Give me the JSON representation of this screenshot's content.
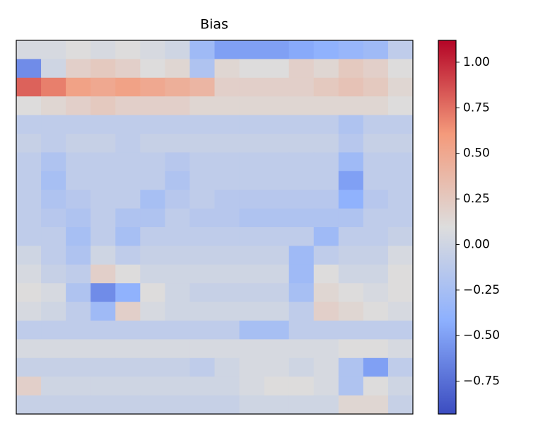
{
  "chart_data": {
    "type": "heatmap",
    "title": "Bias",
    "colormap": "coolwarm",
    "vlim": [
      -0.93,
      1.12
    ],
    "colorbar_ticks": [
      {
        "value": -0.75,
        "label": "−0.75"
      },
      {
        "value": -0.5,
        "label": "−0.50"
      },
      {
        "value": -0.25,
        "label": "−0.25"
      },
      {
        "value": 0,
        "label": "0.00"
      },
      0.25,
      {
        "value": 0.5,
        "label": "0.50"
      },
      0.75,
      {
        "value": 1,
        "label": "1.00"
      }
    ],
    "z": [
      [
        0.05,
        0.05,
        0.1,
        0.05,
        0.1,
        0.05,
        0.0,
        -0.3,
        -0.5,
        -0.5,
        -0.5,
        -0.45,
        -0.4,
        -0.35,
        -0.3,
        -0.1
      ],
      [
        -0.6,
        0.0,
        0.2,
        0.25,
        0.2,
        0.1,
        0.15,
        -0.2,
        0.15,
        0.1,
        0.1,
        0.2,
        0.15,
        0.25,
        0.2,
        0.1
      ],
      [
        0.8,
        0.7,
        0.55,
        0.5,
        0.55,
        0.5,
        0.45,
        0.4,
        0.2,
        0.2,
        0.2,
        0.2,
        0.25,
        0.3,
        0.25,
        0.15
      ],
      [
        0.1,
        0.15,
        0.2,
        0.25,
        0.2,
        0.2,
        0.2,
        0.15,
        0.15,
        0.15,
        0.15,
        0.15,
        0.15,
        0.15,
        0.15,
        0.1
      ],
      [
        -0.1,
        -0.1,
        -0.1,
        -0.1,
        -0.1,
        -0.1,
        -0.1,
        -0.1,
        -0.1,
        -0.1,
        -0.1,
        -0.1,
        -0.1,
        -0.2,
        -0.1,
        -0.1
      ],
      [
        -0.05,
        -0.1,
        -0.05,
        -0.05,
        -0.1,
        -0.05,
        -0.05,
        -0.05,
        -0.05,
        -0.05,
        -0.05,
        -0.05,
        -0.05,
        -0.15,
        -0.05,
        -0.05
      ],
      [
        -0.1,
        -0.2,
        -0.1,
        -0.1,
        -0.1,
        -0.1,
        -0.15,
        -0.1,
        -0.1,
        -0.1,
        -0.1,
        -0.1,
        -0.1,
        -0.3,
        -0.1,
        -0.1
      ],
      [
        -0.1,
        -0.25,
        -0.1,
        -0.1,
        -0.1,
        -0.1,
        -0.2,
        -0.1,
        -0.1,
        -0.1,
        -0.1,
        -0.1,
        -0.1,
        -0.5,
        -0.1,
        -0.1
      ],
      [
        -0.1,
        -0.2,
        -0.15,
        -0.1,
        -0.1,
        -0.25,
        -0.15,
        -0.1,
        -0.15,
        -0.15,
        -0.15,
        -0.15,
        -0.15,
        -0.4,
        -0.15,
        -0.1
      ],
      [
        -0.1,
        -0.15,
        -0.2,
        -0.1,
        -0.2,
        -0.2,
        -0.1,
        -0.15,
        -0.15,
        -0.2,
        -0.2,
        -0.2,
        -0.2,
        -0.2,
        -0.1,
        -0.1
      ],
      [
        -0.1,
        -0.1,
        -0.25,
        -0.1,
        -0.25,
        -0.1,
        -0.1,
        -0.1,
        -0.1,
        -0.1,
        -0.1,
        -0.1,
        -0.3,
        -0.1,
        -0.1,
        -0.05
      ],
      [
        0.0,
        -0.1,
        -0.2,
        0.0,
        -0.1,
        -0.05,
        -0.05,
        -0.05,
        -0.05,
        -0.05,
        -0.05,
        -0.3,
        -0.1,
        -0.05,
        -0.05,
        0.05
      ],
      [
        0.05,
        -0.05,
        -0.1,
        0.2,
        0.1,
        0.0,
        0.0,
        0.0,
        0.0,
        0.0,
        0.0,
        -0.3,
        0.1,
        0.0,
        0.0,
        0.1
      ],
      [
        0.1,
        0.05,
        -0.2,
        -0.6,
        -0.4,
        0.1,
        0.0,
        -0.05,
        -0.05,
        -0.05,
        -0.05,
        -0.25,
        0.15,
        0.1,
        0.05,
        0.1
      ],
      [
        0.05,
        0.0,
        -0.1,
        -0.3,
        0.2,
        0.05,
        0.0,
        0.0,
        0.0,
        0.0,
        0.0,
        -0.1,
        0.2,
        0.15,
        0.1,
        0.05
      ],
      [
        -0.1,
        -0.1,
        -0.1,
        -0.1,
        -0.1,
        -0.1,
        -0.1,
        -0.1,
        -0.1,
        -0.25,
        -0.25,
        -0.1,
        -0.1,
        -0.1,
        -0.1,
        -0.1
      ],
      [
        0.05,
        0.05,
        0.05,
        0.05,
        0.05,
        0.05,
        0.05,
        0.05,
        0.05,
        0.05,
        0.05,
        0.05,
        0.05,
        0.1,
        0.1,
        0.05
      ],
      [
        -0.05,
        -0.05,
        -0.05,
        -0.05,
        -0.05,
        -0.05,
        -0.05,
        -0.1,
        0.0,
        0.05,
        0.05,
        0.0,
        0.05,
        -0.2,
        -0.5,
        -0.1
      ],
      [
        0.2,
        0.0,
        0.0,
        0.0,
        0.0,
        0.0,
        0.0,
        0.0,
        0.0,
        0.05,
        0.1,
        0.1,
        0.05,
        -0.2,
        0.1,
        0.0
      ],
      [
        -0.05,
        -0.05,
        -0.05,
        -0.05,
        -0.05,
        -0.05,
        -0.05,
        -0.05,
        -0.05,
        0.0,
        0.0,
        0.0,
        0.0,
        0.15,
        0.15,
        -0.05
      ]
    ]
  }
}
